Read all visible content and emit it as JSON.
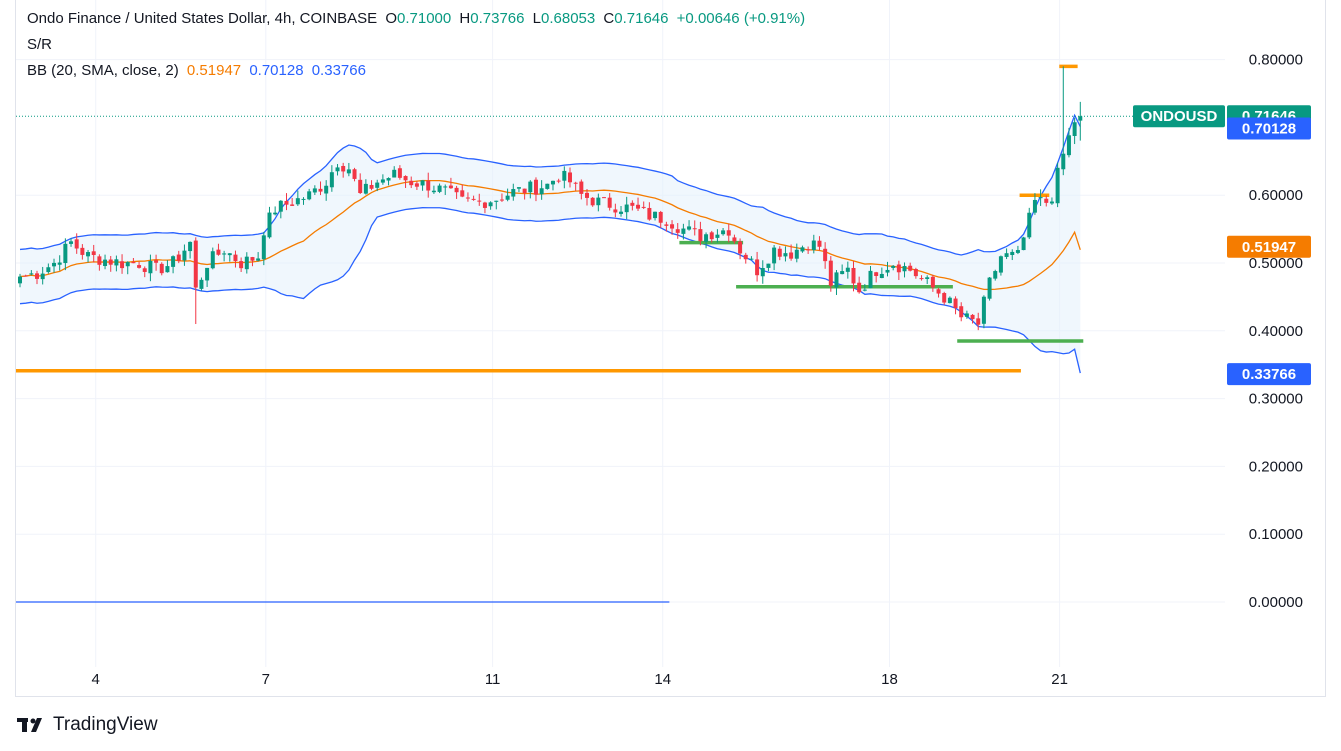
{
  "legend": {
    "symbol": "Ondo Finance / United States Dollar, 4h, COINBASE",
    "o_label": "O",
    "o_value": "0.71000",
    "h_label": "H",
    "h_value": "0.73766",
    "l_label": "L",
    "l_value": "0.68053",
    "c_label": "C",
    "c_value": "0.71646",
    "change": "+0.00646 (+0.91%)",
    "sr_label": "S/R",
    "bb_label": "BB (20, SMA, close, 2)",
    "bb_basis": "0.51947",
    "bb_upper": "0.70128",
    "bb_lower": "0.33766"
  },
  "price_tags": {
    "symbol_tag": "ONDOUSD",
    "last_price": "0.71646",
    "upper_band": "0.70128",
    "basis": "0.51947",
    "lower_band": "0.33766"
  },
  "footer": {
    "brand": "TradingView"
  },
  "colors": {
    "up": "#089981",
    "down": "#f23645",
    "basis": "#f57c00",
    "band": "#2962ff",
    "band_fill": "#e3f0fb",
    "sr_orange": "#ff9800",
    "sr_green": "#4caf50"
  },
  "chart_data": {
    "type": "candlestick",
    "title": "Ondo Finance / United States Dollar, 4h, COINBASE",
    "y_ticks": [
      "0.80000",
      "0.60000",
      "0.50000",
      "0.40000",
      "0.30000",
      "0.20000",
      "0.10000",
      "0.00000"
    ],
    "y_tick_values": [
      0.8,
      0.6,
      0.5,
      0.4,
      0.3,
      0.2,
      0.1,
      0.0
    ],
    "ylim": [
      -0.08,
      0.88
    ],
    "x_ticks": [
      "4",
      "7",
      "11",
      "14",
      "18",
      "21"
    ],
    "x_tick_bars": [
      13,
      43,
      83,
      113,
      153,
      183
    ],
    "bar_count": 188,
    "grid": true,
    "last_price": 0.71646,
    "anchors": [
      [
        0,
        0.48
      ],
      [
        3,
        0.485
      ],
      [
        6,
        0.5
      ],
      [
        9,
        0.53
      ],
      [
        12,
        0.51
      ],
      [
        15,
        0.505
      ],
      [
        18,
        0.5
      ],
      [
        21,
        0.5
      ],
      [
        24,
        0.49
      ],
      [
        27,
        0.5
      ],
      [
        30,
        0.53
      ],
      [
        31,
        0.46
      ],
      [
        33,
        0.5
      ],
      [
        36,
        0.52
      ],
      [
        39,
        0.5
      ],
      [
        42,
        0.51
      ],
      [
        43,
        0.55
      ],
      [
        45,
        0.58
      ],
      [
        48,
        0.59
      ],
      [
        51,
        0.6
      ],
      [
        54,
        0.62
      ],
      [
        56,
        0.65
      ],
      [
        58,
        0.64
      ],
      [
        60,
        0.6
      ],
      [
        63,
        0.62
      ],
      [
        66,
        0.63
      ],
      [
        69,
        0.62
      ],
      [
        72,
        0.615
      ],
      [
        75,
        0.605
      ],
      [
        78,
        0.59
      ],
      [
        81,
        0.59
      ],
      [
        84,
        0.595
      ],
      [
        87,
        0.605
      ],
      [
        90,
        0.61
      ],
      [
        93,
        0.615
      ],
      [
        95,
        0.63
      ],
      [
        97,
        0.62
      ],
      [
        99,
        0.6
      ],
      [
        102,
        0.59
      ],
      [
        105,
        0.585
      ],
      [
        108,
        0.58
      ],
      [
        111,
        0.57
      ],
      [
        114,
        0.565
      ],
      [
        117,
        0.55
      ],
      [
        120,
        0.54
      ],
      [
        122,
        0.545
      ],
      [
        125,
        0.55
      ],
      [
        127,
        0.52
      ],
      [
        130,
        0.49
      ],
      [
        133,
        0.52
      ],
      [
        136,
        0.515
      ],
      [
        139,
        0.53
      ],
      [
        141,
        0.525
      ],
      [
        143,
        0.47
      ],
      [
        146,
        0.49
      ],
      [
        148,
        0.46
      ],
      [
        151,
        0.49
      ],
      [
        154,
        0.5
      ],
      [
        157,
        0.49
      ],
      [
        160,
        0.47
      ],
      [
        163,
        0.45
      ],
      [
        166,
        0.42
      ],
      [
        169,
        0.41
      ],
      [
        171,
        0.47
      ],
      [
        173,
        0.51
      ],
      [
        176,
        0.51
      ],
      [
        179,
        0.59
      ],
      [
        181,
        0.59
      ],
      [
        182,
        0.6
      ],
      [
        184,
        0.66
      ],
      [
        186,
        0.71
      ],
      [
        187,
        0.71646
      ]
    ],
    "bollinger": {
      "period": 20,
      "ma": "SMA",
      "source": "close",
      "stddev": 2,
      "basis": 0.51947,
      "upper": 0.70128,
      "lower": 0.33766
    },
    "sr_levels": [
      {
        "color": "orange",
        "y": 0.341,
        "x_from": 0,
        "x_to": 176
      },
      {
        "color": "green",
        "y": 0.53,
        "x_from": 117,
        "x_to": 127
      },
      {
        "color": "green",
        "y": 0.465,
        "x_from": 127,
        "x_to": 164
      },
      {
        "color": "green",
        "y": 0.385,
        "x_from": 166,
        "x_to": 187
      },
      {
        "color": "orange",
        "y": 0.6,
        "x_from": 177,
        "x_to": 181
      },
      {
        "color": "orange",
        "y": 0.79,
        "x_from": 184,
        "x_to": 186
      },
      {
        "color": "blue",
        "y": 0.0,
        "x_from": 0,
        "x_to": 114
      }
    ]
  }
}
